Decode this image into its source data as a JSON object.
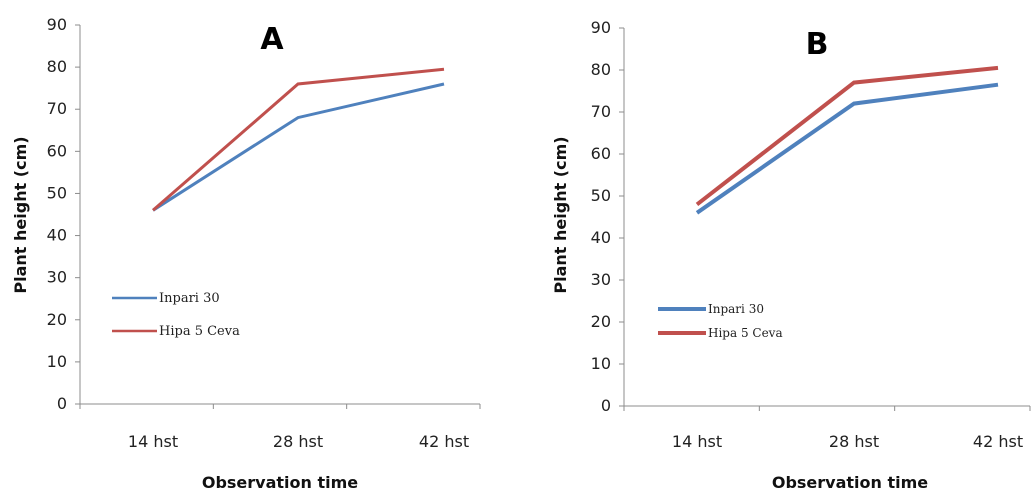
{
  "colors": {
    "inpari": "#4f81bd",
    "hipa": "#c0504d"
  },
  "chart_data": [
    {
      "type": "line",
      "panel_label": "A",
      "categories": [
        "14 hst",
        "28 hst",
        "42 hst"
      ],
      "series": [
        {
          "name": "Inpari 30",
          "values": [
            46,
            68,
            76
          ]
        },
        {
          "name": "Hipa 5 Ceva",
          "values": [
            46,
            76,
            79.5
          ]
        }
      ],
      "ylabel": "Plant height (cm)",
      "xlabel": "Observation time",
      "ylim": [
        0,
        90
      ],
      "yticks": [
        "0",
        "10",
        "20",
        "30",
        "40",
        "50",
        "60",
        "70",
        "80",
        "90"
      ],
      "grid": false,
      "legend": "left-middle"
    },
    {
      "type": "line",
      "panel_label": "B",
      "categories": [
        "14 hst",
        "28 hst",
        "42 hst"
      ],
      "series": [
        {
          "name": "Inpari 30",
          "values": [
            46,
            72,
            76.5
          ]
        },
        {
          "name": "Hipa 5 Ceva",
          "values": [
            48,
            77,
            80.5
          ]
        }
      ],
      "ylabel": "Plant height (cm)",
      "xlabel": "Observation time",
      "ylim": [
        0,
        90
      ],
      "yticks": [
        "0",
        "10",
        "20",
        "30",
        "40",
        "50",
        "60",
        "70",
        "80",
        "90"
      ],
      "grid": false,
      "legend": "left-middle"
    }
  ]
}
